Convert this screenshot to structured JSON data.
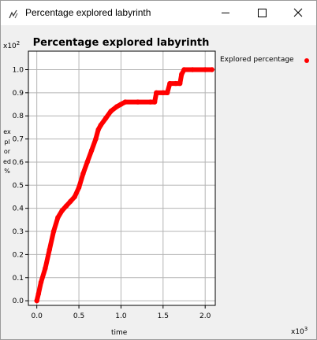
{
  "window": {
    "title": "Percentage explored labyrinth",
    "icon": "chart-app-icon",
    "buttons": [
      "minimize",
      "maximize",
      "close"
    ]
  },
  "chart_data": {
    "type": "scatter",
    "title": "Percentage explored labyrinth",
    "xlabel": "time",
    "ylabel": "explored %",
    "x_exponent": "x10^3",
    "y_exponent": "x10^2",
    "x_exponent_base": "x10",
    "x_exponent_power": "3",
    "y_exponent_base": "x10",
    "y_exponent_power": "2",
    "xlim": [
      -0.1,
      2.12
    ],
    "ylim": [
      -0.02,
      1.08
    ],
    "xticks": [
      0.0,
      0.5,
      1.0,
      1.5,
      2.0
    ],
    "xtick_labels": [
      "0.0",
      "0.5",
      "1.0",
      "1.5",
      "2.0"
    ],
    "yticks": [
      0.0,
      0.1,
      0.2,
      0.3,
      0.4,
      0.5,
      0.6,
      0.7,
      0.8,
      0.9,
      1.0
    ],
    "ytick_labels": [
      "0.0",
      "0.1",
      "0.2",
      "0.3",
      "0.4",
      "0.5",
      "0.6",
      "0.7",
      "0.8",
      "0.9",
      "1.0"
    ],
    "grid": true,
    "legend_position": "right",
    "series": [
      {
        "name": "Explored percentage",
        "color": "#ff0000",
        "points": [
          [
            0.0,
            0.0
          ],
          [
            0.02,
            0.03
          ],
          [
            0.05,
            0.08
          ],
          [
            0.1,
            0.14
          ],
          [
            0.15,
            0.22
          ],
          [
            0.2,
            0.3
          ],
          [
            0.25,
            0.36
          ],
          [
            0.3,
            0.39
          ],
          [
            0.35,
            0.41
          ],
          [
            0.4,
            0.43
          ],
          [
            0.45,
            0.45
          ],
          [
            0.5,
            0.49
          ],
          [
            0.55,
            0.55
          ],
          [
            0.6,
            0.6
          ],
          [
            0.65,
            0.65
          ],
          [
            0.7,
            0.7
          ],
          [
            0.73,
            0.74
          ],
          [
            0.76,
            0.76
          ],
          [
            0.82,
            0.79
          ],
          [
            0.88,
            0.82
          ],
          [
            0.95,
            0.84
          ],
          [
            1.0,
            0.85
          ],
          [
            1.05,
            0.86
          ],
          [
            1.2,
            0.86
          ],
          [
            1.35,
            0.86
          ],
          [
            1.4,
            0.86
          ],
          [
            1.42,
            0.9
          ],
          [
            1.5,
            0.9
          ],
          [
            1.55,
            0.9
          ],
          [
            1.58,
            0.94
          ],
          [
            1.65,
            0.94
          ],
          [
            1.7,
            0.94
          ],
          [
            1.72,
            0.98
          ],
          [
            1.75,
            1.0
          ],
          [
            1.85,
            1.0
          ],
          [
            2.0,
            1.0
          ],
          [
            2.08,
            1.0
          ]
        ]
      }
    ]
  }
}
